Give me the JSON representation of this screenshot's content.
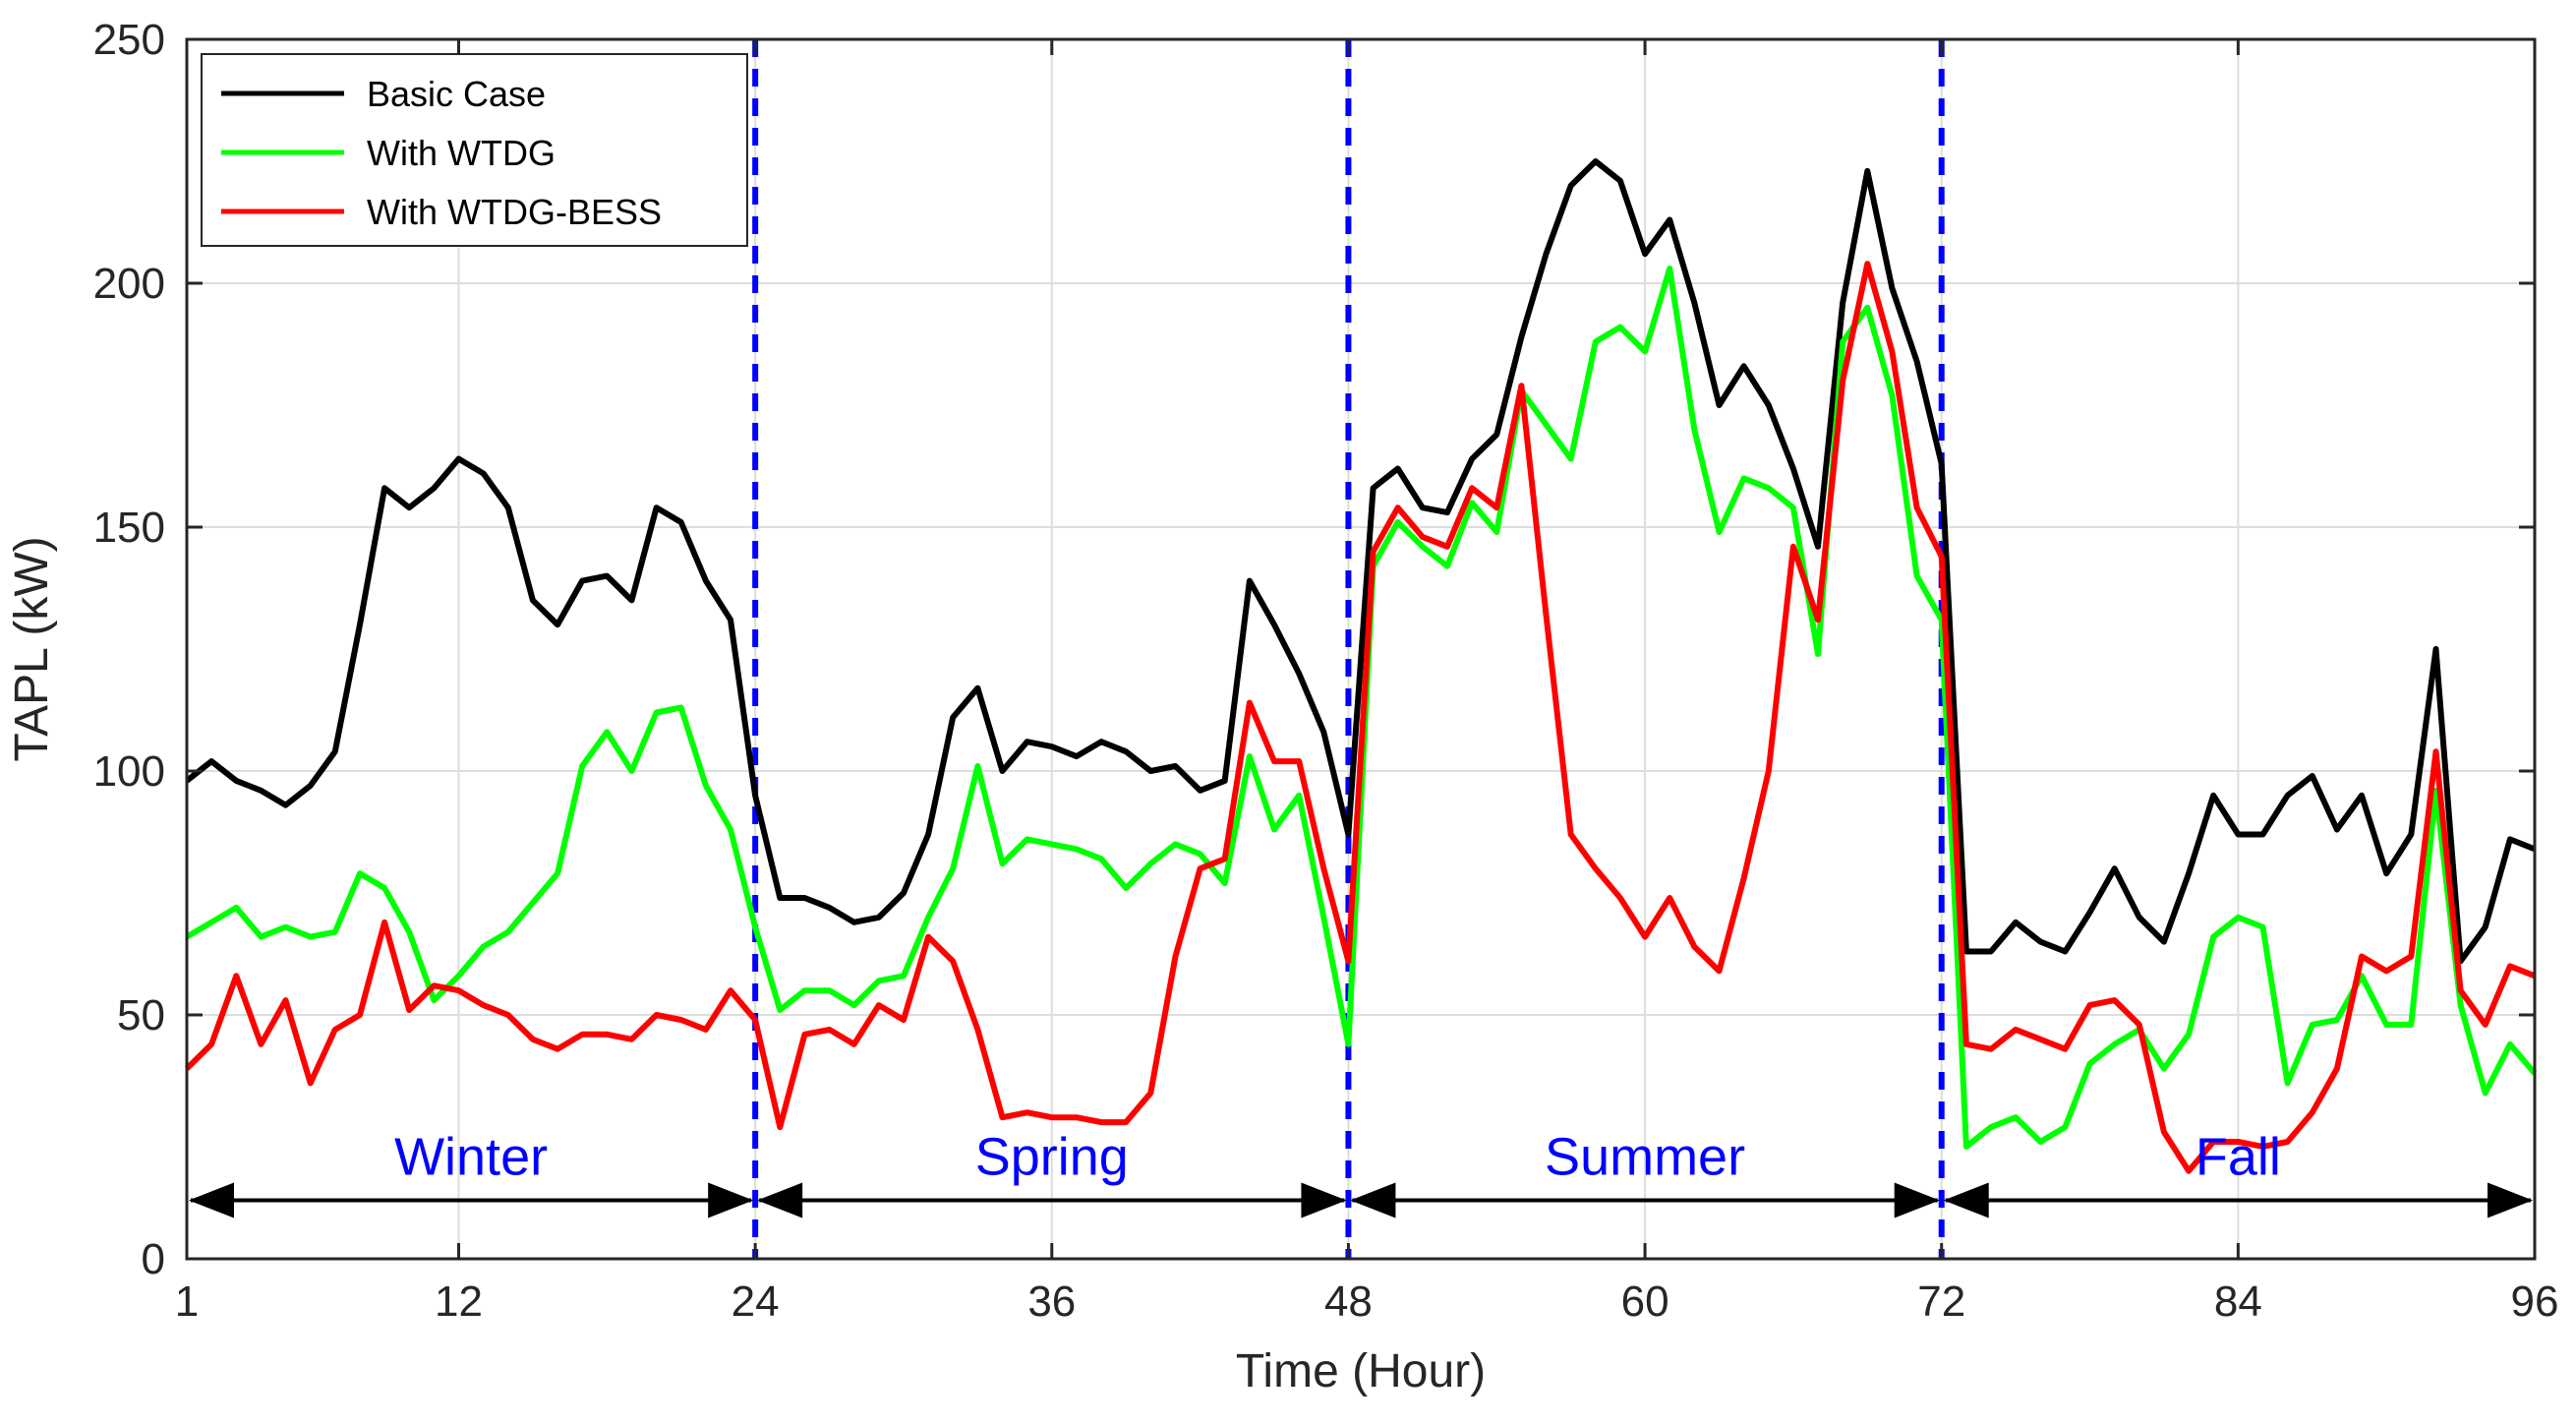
{
  "chart_data": {
    "type": "line",
    "xlabel": "Time (Hour)",
    "ylabel": "TAPL (kW)",
    "xlim": [
      1,
      96
    ],
    "ylim": [
      0,
      250
    ],
    "xticks": [
      1,
      12,
      24,
      36,
      48,
      60,
      72,
      84,
      96
    ],
    "yticks": [
      0,
      50,
      100,
      150,
      200,
      250
    ],
    "grid": true,
    "legend_position": "top-left",
    "x": [
      1,
      2,
      3,
      4,
      5,
      6,
      7,
      8,
      9,
      10,
      11,
      12,
      13,
      14,
      15,
      16,
      17,
      18,
      19,
      20,
      21,
      22,
      23,
      24,
      25,
      26,
      27,
      28,
      29,
      30,
      31,
      32,
      33,
      34,
      35,
      36,
      37,
      38,
      39,
      40,
      41,
      42,
      43,
      44,
      45,
      46,
      47,
      48,
      49,
      50,
      51,
      52,
      53,
      54,
      55,
      56,
      57,
      58,
      59,
      60,
      61,
      62,
      63,
      64,
      65,
      66,
      67,
      68,
      69,
      70,
      71,
      72,
      73,
      74,
      75,
      76,
      77,
      78,
      79,
      80,
      81,
      82,
      83,
      84,
      85,
      86,
      87,
      88,
      89,
      90,
      91,
      92,
      93,
      94,
      95,
      96
    ],
    "series": [
      {
        "name": "Basic Case",
        "color": "#000000",
        "values": [
          98,
          102,
          98,
          96,
          93,
          97,
          104,
          130,
          158,
          154,
          158,
          164,
          161,
          154,
          135,
          130,
          139,
          140,
          135,
          154,
          151,
          139,
          131,
          95,
          74,
          74,
          72,
          69,
          70,
          75,
          87,
          111,
          117,
          100,
          106,
          105,
          103,
          106,
          104,
          100,
          101,
          96,
          98,
          139,
          130,
          120,
          108,
          87,
          158,
          162,
          154,
          153,
          164,
          169,
          189,
          206,
          220,
          225,
          221,
          206,
          213,
          196,
          175,
          183,
          175,
          162,
          146,
          196,
          223,
          199,
          184,
          163,
          63,
          63,
          69,
          65,
          63,
          71,
          80,
          70,
          65,
          79,
          95,
          87,
          87,
          95,
          99,
          88,
          95,
          79,
          87,
          125,
          61,
          68,
          86,
          84
        ]
      },
      {
        "name": "With WTDG",
        "color": "#00ff00",
        "values": [
          66,
          69,
          72,
          66,
          68,
          66,
          67,
          79,
          76,
          67,
          53,
          58,
          64,
          67,
          73,
          79,
          101,
          108,
          100,
          112,
          113,
          97,
          88,
          68,
          51,
          55,
          55,
          52,
          57,
          58,
          70,
          80,
          101,
          81,
          86,
          85,
          84,
          82,
          76,
          81,
          85,
          83,
          77,
          103,
          88,
          95,
          70,
          44,
          142,
          151,
          146,
          142,
          155,
          149,
          178,
          171,
          164,
          188,
          191,
          186,
          203,
          170,
          149,
          160,
          158,
          154,
          124,
          188,
          195,
          177,
          140,
          131,
          23,
          27,
          29,
          24,
          27,
          40,
          44,
          47,
          39,
          46,
          66,
          70,
          68,
          36,
          48,
          49,
          58,
          48,
          48,
          96,
          52,
          34,
          44,
          38
        ]
      },
      {
        "name": "With WTDG-BESS",
        "color": "#ff0000",
        "values": [
          39,
          44,
          58,
          44,
          53,
          36,
          47,
          50,
          69,
          51,
          56,
          55,
          52,
          50,
          45,
          43,
          46,
          46,
          45,
          50,
          49,
          47,
          55,
          49,
          27,
          46,
          47,
          44,
          52,
          49,
          66,
          61,
          47,
          29,
          30,
          29,
          29,
          28,
          28,
          34,
          62,
          80,
          82,
          114,
          102,
          102,
          80,
          61,
          145,
          154,
          148,
          146,
          158,
          154,
          179,
          132,
          87,
          80,
          74,
          66,
          74,
          64,
          59,
          78,
          100,
          146,
          131,
          180,
          204,
          186,
          154,
          144,
          44,
          43,
          47,
          45,
          43,
          52,
          53,
          48,
          26,
          18,
          24,
          24,
          23,
          24,
          30,
          39,
          62,
          59,
          62,
          104,
          55,
          48,
          60,
          58
        ]
      }
    ],
    "season_dividers": [
      24,
      48,
      72
    ],
    "season_labels": [
      "Winter",
      "Spring",
      "Summer",
      "Fall"
    ],
    "season_ranges": [
      [
        1,
        24
      ],
      [
        24,
        48
      ],
      [
        48,
        72
      ],
      [
        72,
        96
      ]
    ],
    "season_arrow_y": 12,
    "colors": {
      "divider": "#0000ff",
      "season_text": "#0000ff",
      "grid": "#dddddd",
      "axis": "#262626"
    }
  }
}
